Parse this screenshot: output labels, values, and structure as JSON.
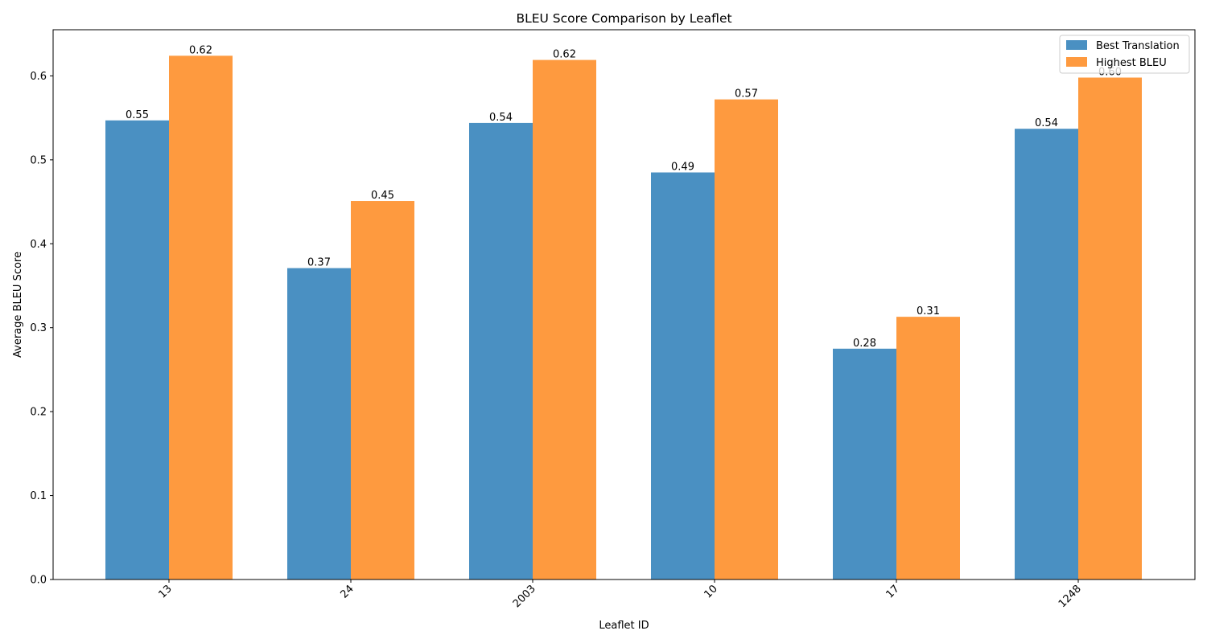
{
  "chart_data": {
    "type": "bar",
    "title": "BLEU Score Comparison by Leaflet",
    "xlabel": "Leaflet ID",
    "ylabel": "Average BLEU Score",
    "categories": [
      "13",
      "24",
      "2003",
      "10",
      "17",
      "1248"
    ],
    "series": [
      {
        "name": "Best Translation",
        "color": "#4a90c2",
        "values": [
          0.547,
          0.371,
          0.544,
          0.485,
          0.275,
          0.537
        ],
        "labels": [
          "0.55",
          "0.37",
          "0.54",
          "0.49",
          "0.28",
          "0.54"
        ]
      },
      {
        "name": "Highest BLEU",
        "color": "#fe9a3f",
        "values": [
          0.624,
          0.451,
          0.619,
          0.572,
          0.313,
          0.598
        ],
        "labels": [
          "0.62",
          "0.45",
          "0.62",
          "0.57",
          "0.31",
          "0.60"
        ]
      }
    ],
    "ylim": [
      0,
      0.655
    ],
    "yticks": [
      0.0,
      0.1,
      0.2,
      0.3,
      0.4,
      0.5,
      0.6
    ],
    "ytick_labels": [
      "0.0",
      "0.1",
      "0.2",
      "0.3",
      "0.4",
      "0.5",
      "0.6"
    ],
    "grid": false,
    "legend_position": "top-right",
    "xtick_rotation": "45 degrees"
  }
}
